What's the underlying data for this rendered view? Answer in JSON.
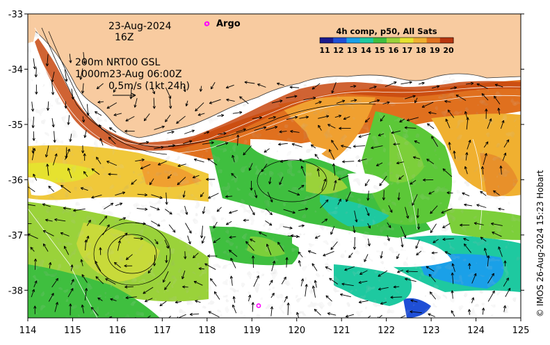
{
  "map": {
    "date": "23-Aug-2024",
    "time": "16Z",
    "depth_line_1": "200m  NRT00 GSL",
    "depth_line_2": "1000m23-Aug 06:00Z",
    "scale_label": "0.5m/s (1kt 24h)",
    "argo_label": "Argo",
    "credit": "© IMOS 26-Aug-2024 15:23 Hobart",
    "lon_range": [
      114,
      125
    ],
    "lat_range": [
      -38.5,
      -33
    ],
    "land_color": "#f8cba0",
    "water_missing_color": "#ffffff",
    "argo_color": "#ff00ff"
  },
  "x_ticks": [
    "114",
    "115",
    "116",
    "117",
    "118",
    "119",
    "120",
    "121",
    "122",
    "123",
    "124",
    "125"
  ],
  "y_ticks": [
    "-33",
    "-34",
    "-35",
    "-36",
    "-37",
    "-38"
  ],
  "colorbar": {
    "title": "4h comp, p50, All Sats",
    "labels": [
      "11",
      "12",
      "13",
      "14",
      "15",
      "16",
      "17",
      "18",
      "19",
      "20"
    ],
    "colors": [
      "#1a1a8c",
      "#1f4fd6",
      "#1aa0e8",
      "#1ec9a0",
      "#3fbf3f",
      "#9ad23a",
      "#e6e22f",
      "#f0b030",
      "#e0701e",
      "#b8360f"
    ]
  },
  "argo_floats": [
    {
      "lon": 119.15,
      "lat": -38.28
    },
    {
      "lon": 117.99,
      "lat": -33.18
    }
  ]
}
